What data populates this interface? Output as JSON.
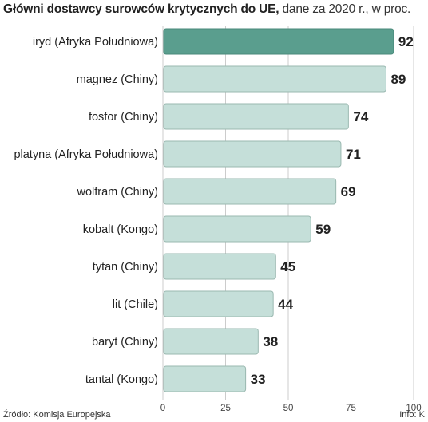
{
  "title": "Główni dostawcy surowców krytycznych do UE,",
  "subtitle": "dane za 2020 r., w proc.",
  "source": "Źródło: Komisja Europejska",
  "credit": "Info: K",
  "chart_data": {
    "type": "bar",
    "orientation": "horizontal",
    "categories": [
      "iryd (Afryka Południowa)",
      "magnez (Chiny)",
      "fosfor (Chiny)",
      "platyna (Afryka Południowa)",
      "wolfram (Chiny)",
      "kobalt (Kongo)",
      "tytan (Chiny)",
      "lit (Chile)",
      "baryt (Chiny)",
      "tantal (Kongo)"
    ],
    "values": [
      92,
      89,
      74,
      71,
      69,
      59,
      45,
      44,
      38,
      33
    ],
    "xlim": [
      0,
      100
    ],
    "xticks": [
      0,
      25,
      50,
      75,
      100
    ],
    "grid": true,
    "colors": {
      "highlight": "#5a9e8e",
      "bar": "#c5dfd9",
      "bar_border": "#9ab8b0",
      "grid": "#cccccc"
    }
  }
}
